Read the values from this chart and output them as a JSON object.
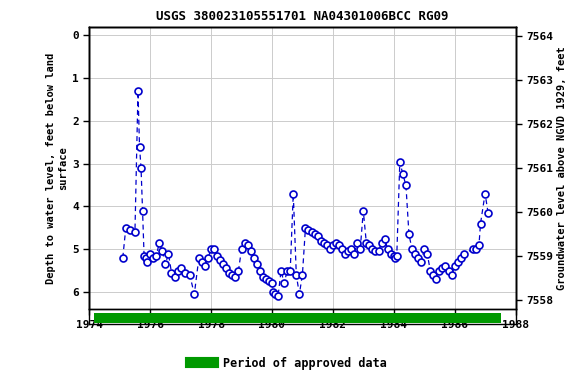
{
  "title": "USGS 380023105551701 NA04301006BCC RG09",
  "ylabel_left": "Depth to water level, feet below land\nsurface",
  "ylabel_right": "Groundwater level above NGVD 1929, feet",
  "ylim_left": [
    6.4,
    -0.2
  ],
  "ylim_right": [
    7557.8,
    7564.2
  ],
  "xlim": [
    1974,
    1988
  ],
  "xticks": [
    1974,
    1976,
    1978,
    1980,
    1982,
    1984,
    1986,
    1988
  ],
  "yticks_left": [
    0.0,
    1.0,
    2.0,
    3.0,
    4.0,
    5.0,
    6.0
  ],
  "yticks_right": [
    7558.0,
    7559.0,
    7560.0,
    7561.0,
    7562.0,
    7563.0,
    7564.0
  ],
  "data_color": "#0000cc",
  "legend_label": "Period of approved data",
  "legend_color": "#009900",
  "background_color": "#ffffff",
  "grid_color": "#cccccc",
  "bar_x_start": 1974.5,
  "bar_x_end": 1987.3,
  "x": [
    1975.1,
    1975.2,
    1975.35,
    1975.5,
    1975.6,
    1975.65,
    1975.7,
    1975.75,
    1975.8,
    1975.85,
    1975.9,
    1976.0,
    1976.1,
    1976.2,
    1976.3,
    1976.4,
    1976.5,
    1976.6,
    1976.7,
    1976.8,
    1976.9,
    1977.0,
    1977.15,
    1977.3,
    1977.45,
    1977.6,
    1977.7,
    1977.8,
    1977.9,
    1978.0,
    1978.1,
    1978.2,
    1978.3,
    1978.4,
    1978.5,
    1978.6,
    1978.7,
    1978.8,
    1978.9,
    1979.0,
    1979.1,
    1979.2,
    1979.3,
    1979.4,
    1979.5,
    1979.6,
    1979.7,
    1979.8,
    1979.9,
    1980.0,
    1980.05,
    1980.1,
    1980.2,
    1980.3,
    1980.4,
    1980.5,
    1980.6,
    1980.7,
    1980.8,
    1980.9,
    1981.0,
    1981.1,
    1981.2,
    1981.3,
    1981.4,
    1981.5,
    1981.6,
    1981.7,
    1981.8,
    1981.9,
    1982.0,
    1982.1,
    1982.2,
    1982.3,
    1982.4,
    1982.5,
    1982.6,
    1982.7,
    1982.8,
    1982.9,
    1983.0,
    1983.1,
    1983.2,
    1983.3,
    1983.4,
    1983.5,
    1983.6,
    1983.7,
    1983.8,
    1983.9,
    1984.0,
    1984.05,
    1984.1,
    1984.2,
    1984.3,
    1984.4,
    1984.5,
    1984.6,
    1984.7,
    1984.8,
    1984.9,
    1985.0,
    1985.1,
    1985.2,
    1985.3,
    1985.4,
    1985.5,
    1985.6,
    1985.7,
    1985.8,
    1985.9,
    1986.0,
    1986.1,
    1986.2,
    1986.3,
    1986.6,
    1986.7,
    1986.8,
    1986.85,
    1987.0,
    1987.1
  ],
  "y": [
    5.2,
    4.5,
    4.55,
    4.6,
    1.3,
    2.6,
    3.1,
    4.1,
    5.15,
    5.2,
    5.3,
    5.1,
    5.2,
    5.15,
    4.85,
    5.05,
    5.35,
    5.1,
    5.55,
    5.65,
    5.5,
    5.45,
    5.55,
    5.6,
    6.05,
    5.2,
    5.3,
    5.4,
    5.2,
    5.0,
    5.0,
    5.15,
    5.25,
    5.35,
    5.45,
    5.55,
    5.6,
    5.65,
    5.5,
    5.0,
    4.85,
    4.9,
    5.05,
    5.2,
    5.35,
    5.5,
    5.65,
    5.7,
    5.75,
    5.8,
    6.0,
    6.05,
    6.1,
    5.5,
    5.8,
    5.5,
    5.5,
    3.7,
    5.6,
    6.05,
    5.6,
    4.5,
    4.55,
    4.6,
    4.65,
    4.7,
    4.8,
    4.85,
    4.9,
    5.0,
    4.9,
    4.85,
    4.9,
    5.0,
    5.1,
    5.05,
    5.0,
    5.1,
    4.85,
    5.0,
    4.1,
    4.85,
    4.9,
    5.0,
    5.05,
    5.05,
    4.85,
    4.75,
    5.0,
    5.1,
    5.15,
    5.2,
    5.15,
    2.95,
    3.25,
    3.5,
    4.65,
    5.0,
    5.1,
    5.2,
    5.3,
    5.0,
    5.1,
    5.5,
    5.6,
    5.7,
    5.5,
    5.45,
    5.4,
    5.5,
    5.6,
    5.4,
    5.3,
    5.2,
    5.1,
    5.0,
    5.0,
    4.9,
    4.4,
    3.7,
    4.15
  ]
}
